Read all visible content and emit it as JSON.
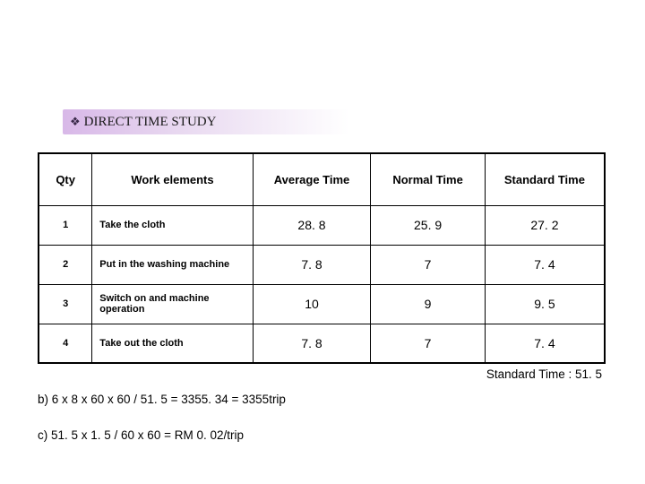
{
  "heading": {
    "bullet": "❖",
    "text": "DIRECT TIME STUDY"
  },
  "table": {
    "headers": {
      "qty": "Qty",
      "work": "Work elements",
      "avg": "Average Time",
      "norm": "Normal Time",
      "std": "Standard Time"
    },
    "rows": [
      {
        "qty": "1",
        "work": "Take the cloth",
        "avg": "28. 8",
        "norm": "25. 9",
        "std": "27. 2"
      },
      {
        "qty": "2",
        "work": "Put in the washing machine",
        "avg": "7. 8",
        "norm": "7",
        "std": "7. 4"
      },
      {
        "qty": "3",
        "work": "Switch on and machine operation",
        "avg": "10",
        "norm": "9",
        "std": "9. 5"
      },
      {
        "qty": "4",
        "work": "Take out the cloth",
        "avg": "7. 8",
        "norm": "7",
        "std": "7. 4"
      }
    ]
  },
  "std_note": "Standard Time : 51. 5",
  "calc_b": "b) 6 x 8 x 60 x 60 / 51. 5 = 3355. 34 = 3355trip",
  "calc_c": "c) 51. 5 x 1. 5 / 60 x 60 = RM 0. 02/trip",
  "colors": {
    "heading_gradient_start": "#d8b8e8",
    "heading_gradient_end": "#ffffff",
    "heading_text": "#1a1a1a",
    "table_border": "#000000",
    "background": "#ffffff"
  }
}
